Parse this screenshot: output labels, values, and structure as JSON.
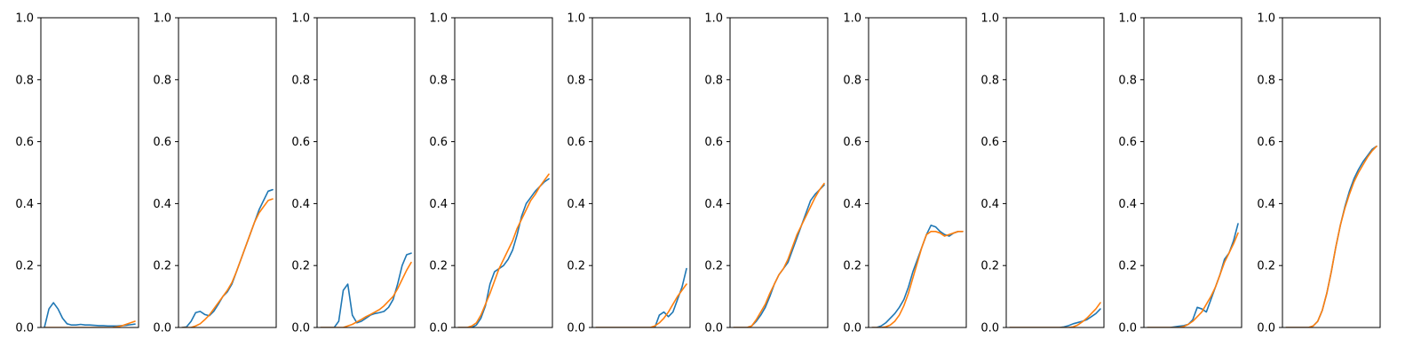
{
  "chart_data": {
    "type": "line",
    "ylim": [
      0,
      1
    ],
    "yticks": [
      "0.0",
      "0.2",
      "0.4",
      "0.6",
      "0.8",
      "1.0"
    ],
    "x_ticks_visible": false,
    "grid": false,
    "legend": "none",
    "series_colors": [
      "#1f77b4",
      "#ff7f0e"
    ],
    "x": [
      0,
      0.05,
      0.1,
      0.15,
      0.2,
      0.25,
      0.3,
      0.35,
      0.4,
      0.45,
      0.5,
      0.55,
      0.6,
      0.65,
      0.7,
      0.75,
      0.8,
      0.85,
      0.9,
      0.95,
      1
    ],
    "panels": [
      {
        "series": [
          {
            "values": [
              0.0,
              0.06,
              0.08,
              0.06,
              0.03,
              0.012,
              0.008,
              0.008,
              0.01,
              0.008,
              0.008,
              0.007,
              0.006,
              0.006,
              0.005,
              0.005,
              0.005,
              0.006,
              0.007,
              0.009,
              0.011
            ]
          },
          {
            "values": [
              0.0,
              0.0,
              0.0,
              0.0,
              0.0,
              0.0,
              0.0,
              0.0,
              0.0,
              0.0,
              0.0,
              0.0,
              0.0,
              0.0,
              0.0,
              0.0,
              0.002,
              0.005,
              0.01,
              0.015,
              0.02
            ]
          }
        ]
      },
      {
        "series": [
          {
            "values": [
              0.0,
              0.002,
              0.02,
              0.048,
              0.052,
              0.042,
              0.038,
              0.052,
              0.075,
              0.1,
              0.115,
              0.14,
              0.18,
              0.22,
              0.26,
              0.3,
              0.34,
              0.38,
              0.41,
              0.44,
              0.445
            ]
          },
          {
            "values": [
              0.0,
              0.0,
              0.0,
              0.005,
              0.012,
              0.025,
              0.04,
              0.06,
              0.08,
              0.1,
              0.12,
              0.145,
              0.18,
              0.22,
              0.26,
              0.3,
              0.34,
              0.37,
              0.39,
              0.41,
              0.415
            ]
          }
        ]
      },
      {
        "series": [
          {
            "values": [
              0.0,
              0.0,
              0.0,
              0.0,
              0.02,
              0.12,
              0.14,
              0.04,
              0.015,
              0.02,
              0.03,
              0.04,
              0.045,
              0.048,
              0.052,
              0.065,
              0.09,
              0.14,
              0.2,
              0.235,
              0.24
            ]
          },
          {
            "values": [
              0.0,
              0.0,
              0.0,
              0.0,
              0.0,
              0.0,
              0.005,
              0.01,
              0.018,
              0.026,
              0.035,
              0.042,
              0.05,
              0.058,
              0.07,
              0.085,
              0.1,
              0.125,
              0.155,
              0.185,
              0.21
            ]
          }
        ]
      },
      {
        "series": [
          {
            "values": [
              0.0,
              0.0,
              0.0,
              0.0,
              0.008,
              0.03,
              0.07,
              0.14,
              0.18,
              0.19,
              0.2,
              0.22,
              0.25,
              0.3,
              0.36,
              0.4,
              0.42,
              0.44,
              0.455,
              0.47,
              0.48
            ]
          },
          {
            "values": [
              0.0,
              0.0,
              0.0,
              0.005,
              0.015,
              0.04,
              0.075,
              0.11,
              0.15,
              0.19,
              0.22,
              0.25,
              0.28,
              0.32,
              0.35,
              0.38,
              0.41,
              0.43,
              0.455,
              0.475,
              0.495
            ]
          }
        ]
      },
      {
        "series": [
          {
            "values": [
              0.0,
              0.0,
              0.0,
              0.0,
              0.0,
              0.0,
              0.0,
              0.0,
              0.0,
              0.0,
              0.0,
              0.0,
              0.0,
              0.0,
              0.04,
              0.05,
              0.035,
              0.05,
              0.09,
              0.13,
              0.19
            ]
          },
          {
            "values": [
              0.0,
              0.0,
              0.0,
              0.0,
              0.0,
              0.0,
              0.0,
              0.0,
              0.0,
              0.0,
              0.0,
              0.0,
              0.0,
              0.005,
              0.015,
              0.03,
              0.05,
              0.075,
              0.1,
              0.12,
              0.14
            ]
          }
        ]
      },
      {
        "series": [
          {
            "values": [
              0.0,
              0.0,
              0.0,
              0.0,
              0.005,
              0.02,
              0.04,
              0.065,
              0.1,
              0.14,
              0.17,
              0.19,
              0.21,
              0.25,
              0.29,
              0.33,
              0.37,
              0.41,
              0.43,
              0.445,
              0.46
            ]
          },
          {
            "values": [
              0.0,
              0.0,
              0.0,
              0.0,
              0.005,
              0.025,
              0.05,
              0.075,
              0.11,
              0.14,
              0.17,
              0.19,
              0.22,
              0.26,
              0.3,
              0.33,
              0.36,
              0.39,
              0.42,
              0.445,
              0.465
            ]
          }
        ]
      },
      {
        "series": [
          {
            "values": [
              0.0,
              0.0,
              0.005,
              0.015,
              0.03,
              0.045,
              0.065,
              0.09,
              0.13,
              0.18,
              0.22,
              0.26,
              0.3,
              0.33,
              0.325,
              0.31,
              0.3,
              0.295,
              0.305,
              0.31,
              0.31
            ]
          },
          {
            "values": [
              0.0,
              0.0,
              0.0,
              0.002,
              0.008,
              0.02,
              0.04,
              0.07,
              0.11,
              0.16,
              0.21,
              0.26,
              0.3,
              0.31,
              0.31,
              0.305,
              0.295,
              0.3,
              0.305,
              0.31,
              0.31
            ]
          }
        ]
      },
      {
        "series": [
          {
            "values": [
              0.0,
              0.0,
              0.0,
              0.0,
              0.0,
              0.0,
              0.0,
              0.0,
              0.0,
              0.0,
              0.0,
              0.0,
              0.002,
              0.006,
              0.012,
              0.016,
              0.02,
              0.025,
              0.035,
              0.045,
              0.06
            ]
          },
          {
            "values": [
              0.0,
              0.0,
              0.0,
              0.0,
              0.0,
              0.0,
              0.0,
              0.0,
              0.0,
              0.0,
              0.0,
              0.0,
              0.0,
              0.0,
              0.002,
              0.008,
              0.018,
              0.03,
              0.045,
              0.06,
              0.08
            ]
          }
        ]
      },
      {
        "series": [
          {
            "values": [
              0.0,
              0.0,
              0.0,
              0.0,
              0.0,
              0.0,
              0.002,
              0.004,
              0.006,
              0.01,
              0.025,
              0.065,
              0.06,
              0.05,
              0.09,
              0.13,
              0.17,
              0.22,
              0.24,
              0.28,
              0.335
            ]
          },
          {
            "values": [
              0.0,
              0.0,
              0.0,
              0.0,
              0.0,
              0.0,
              0.0,
              0.0,
              0.003,
              0.01,
              0.02,
              0.035,
              0.05,
              0.075,
              0.1,
              0.13,
              0.17,
              0.21,
              0.24,
              0.27,
              0.305
            ]
          }
        ]
      },
      {
        "series": [
          {
            "values": [
              0.0,
              0.0,
              0.0,
              0.0,
              0.0,
              0.0,
              0.005,
              0.02,
              0.055,
              0.11,
              0.18,
              0.26,
              0.33,
              0.39,
              0.44,
              0.48,
              0.51,
              0.535,
              0.555,
              0.575,
              0.585
            ]
          },
          {
            "values": [
              0.0,
              0.0,
              0.0,
              0.0,
              0.0,
              0.0,
              0.005,
              0.02,
              0.055,
              0.11,
              0.18,
              0.26,
              0.33,
              0.385,
              0.43,
              0.47,
              0.5,
              0.525,
              0.55,
              0.57,
              0.585
            ]
          }
        ]
      }
    ]
  }
}
